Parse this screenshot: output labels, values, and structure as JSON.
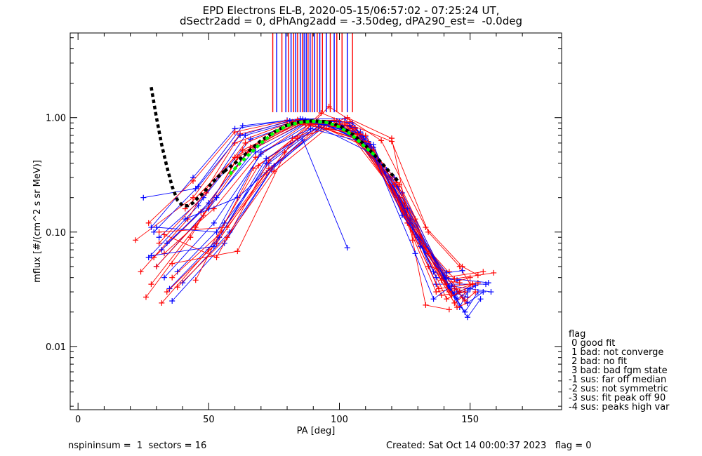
{
  "title_line1": "EPD Electrons EL-B, 2020-05-15/06:57:02 - 07:25:24 UT,",
  "title_line2": "dSectr2add = 0, dPhAng2add = -3.50deg, dPA290_est=  -0.0deg",
  "footer_left": "nspininsum =  1  sectors = 16",
  "footer_right": "Created: Sat Oct 14 00:00:37 2023   flag = 0",
  "legend": {
    "title": "flag",
    "items": [
      " 0 good fit",
      " 1 bad: not converge",
      " 2 bad: no fit",
      " 3 bad: bad fgm state",
      "-1 sus: far off median",
      "-2 sus: not symmetric",
      "-3 sus: fit peak off 90",
      "-4 sus: peaks high var"
    ]
  },
  "colors": {
    "red": "#ff0000",
    "blue": "#0000ff",
    "green": "#00ff00",
    "black": "#000000"
  },
  "chart_data": {
    "type": "line",
    "xlabel": "PA [deg]",
    "ylabel": "mflux [#/(cm^2 s sr MeV)]",
    "xlim": [
      -3,
      185
    ],
    "ylim": [
      0.0028,
      5.5
    ],
    "ylog": true,
    "xticks": [
      0,
      50,
      100,
      150
    ],
    "xtick_labels": [
      "0",
      "50",
      "100",
      "150"
    ],
    "yticks": [
      0.01,
      0.1,
      1.0
    ],
    "ytick_labels": [
      "0.01",
      "0.10",
      "1.00"
    ],
    "vertical_markers": [
      {
        "x": 74.5,
        "color": "red"
      },
      {
        "x": 76.0,
        "color": "blue"
      },
      {
        "x": 78.0,
        "color": "red"
      },
      {
        "x": 79.5,
        "color": "blue"
      },
      {
        "x": 80.5,
        "color": "red"
      },
      {
        "x": 81.5,
        "color": "blue"
      },
      {
        "x": 82.5,
        "color": "red"
      },
      {
        "x": 83.3,
        "color": "blue"
      },
      {
        "x": 84.0,
        "color": "red"
      },
      {
        "x": 85.0,
        "color": "blue"
      },
      {
        "x": 85.8,
        "color": "red"
      },
      {
        "x": 86.5,
        "color": "blue"
      },
      {
        "x": 87.3,
        "color": "blue"
      },
      {
        "x": 88.0,
        "color": "red"
      },
      {
        "x": 88.8,
        "color": "blue"
      },
      {
        "x": 89.6,
        "color": "red"
      },
      {
        "x": 90.5,
        "color": "blue"
      },
      {
        "x": 91.5,
        "color": "red"
      },
      {
        "x": 92.5,
        "color": "blue"
      },
      {
        "x": 93.5,
        "color": "red"
      },
      {
        "x": 95.0,
        "color": "blue"
      },
      {
        "x": 96.5,
        "color": "red"
      },
      {
        "x": 98.0,
        "color": "blue"
      },
      {
        "x": 99.0,
        "color": "red"
      },
      {
        "x": 101.0,
        "color": "red"
      },
      {
        "x": 103.0,
        "color": "blue"
      },
      {
        "x": 105.0,
        "color": "red"
      }
    ],
    "series": [
      {
        "color": "blue",
        "x": [
          25,
          45,
          63,
          85,
          102,
          121,
          137,
          156
        ],
        "y": [
          0.2,
          0.24,
          0.85,
          0.98,
          0.98,
          0.3,
          0.035,
          0.035
        ]
      },
      {
        "color": "red",
        "x": [
          22,
          44,
          62,
          84,
          104,
          123,
          140,
          155
        ],
        "y": [
          0.085,
          0.2,
          0.72,
          0.96,
          0.92,
          0.26,
          0.04,
          0.045
        ]
      },
      {
        "color": "blue",
        "x": [
          27,
          46,
          64,
          86,
          105,
          124,
          142,
          158
        ],
        "y": [
          0.06,
          0.17,
          0.7,
          0.97,
          0.9,
          0.22,
          0.034,
          0.03
        ]
      },
      {
        "color": "red",
        "x": [
          24,
          42,
          60,
          82,
          101,
          120,
          138,
          153
        ],
        "y": [
          0.045,
          0.13,
          0.6,
          0.92,
          0.88,
          0.24,
          0.032,
          0.036
        ]
      },
      {
        "color": "blue",
        "x": [
          31,
          48,
          66,
          87,
          106,
          125,
          143,
          149
        ],
        "y": [
          0.09,
          0.2,
          0.65,
          0.95,
          0.82,
          0.17,
          0.03,
          0.027
        ]
      },
      {
        "color": "red",
        "x": [
          28,
          45,
          63,
          84,
          104,
          122,
          139,
          148
        ],
        "y": [
          0.035,
          0.11,
          0.52,
          0.9,
          0.84,
          0.2,
          0.028,
          0.03
        ]
      },
      {
        "color": "blue",
        "x": [
          30,
          50,
          68,
          88,
          108,
          127,
          145,
          152
        ],
        "y": [
          0.05,
          0.16,
          0.55,
          0.93,
          0.75,
          0.13,
          0.026,
          0.034
        ]
      },
      {
        "color": "red",
        "x": [
          26,
          43,
          61,
          83,
          103,
          121,
          137,
          144
        ],
        "y": [
          0.027,
          0.09,
          0.45,
          0.88,
          0.86,
          0.22,
          0.03,
          0.032
        ]
      },
      {
        "color": "blue",
        "x": [
          33,
          52,
          70,
          90,
          109,
          128,
          146,
          149
        ],
        "y": [
          0.04,
          0.12,
          0.48,
          0.92,
          0.7,
          0.11,
          0.022,
          0.03
        ]
      },
      {
        "color": "red",
        "x": [
          32,
          50,
          69,
          89,
          108,
          126,
          144,
          147
        ],
        "y": [
          0.024,
          0.07,
          0.38,
          0.86,
          0.72,
          0.12,
          0.024,
          0.027
        ]
      },
      {
        "color": "blue",
        "x": [
          35,
          54,
          72,
          92,
          111,
          130,
          148,
          153
        ],
        "y": [
          0.032,
          0.09,
          0.4,
          0.9,
          0.62,
          0.09,
          0.02,
          0.03
        ]
      },
      {
        "color": "red",
        "x": [
          29,
          47,
          65,
          86,
          106,
          124,
          141,
          146
        ],
        "y": [
          0.06,
          0.15,
          0.5,
          0.9,
          0.8,
          0.18,
          0.026,
          0.03
        ]
      },
      {
        "color": "blue",
        "x": [
          36,
          56,
          74,
          94,
          112,
          131,
          149,
          154
        ],
        "y": [
          0.025,
          0.08,
          0.35,
          0.88,
          0.58,
          0.08,
          0.018,
          0.026
        ]
      },
      {
        "color": "red",
        "x": [
          34,
          53,
          72,
          92,
          110,
          128,
          145,
          149
        ],
        "y": [
          0.03,
          0.08,
          0.33,
          0.84,
          0.62,
          0.1,
          0.022,
          0.024
        ]
      },
      {
        "color": "blue",
        "x": [
          28,
          44,
          60,
          80,
          99,
          118,
          136,
          141
        ],
        "y": [
          0.11,
          0.3,
          0.8,
          0.95,
          0.94,
          0.35,
          0.045,
          0.04
        ]
      },
      {
        "color": "red",
        "x": [
          27,
          44,
          60,
          80,
          98,
          116,
          134,
          142
        ],
        "y": [
          0.12,
          0.28,
          0.75,
          0.94,
          0.95,
          0.38,
          0.05,
          0.045
        ]
      },
      {
        "color": "blue",
        "x": [
          38,
          56,
          73,
          93,
          110,
          127,
          145,
          152
        ],
        "y": [
          0.045,
          0.12,
          0.4,
          0.88,
          0.68,
          0.12,
          0.03,
          0.034
        ]
      },
      {
        "color": "red",
        "x": [
          36,
          55,
          73,
          93,
          111,
          129,
          146,
          151
        ],
        "y": [
          0.04,
          0.1,
          0.36,
          0.82,
          0.6,
          0.1,
          0.03,
          0.035
        ]
      },
      {
        "color": "blue",
        "x": [
          32,
          50,
          66,
          85,
          104,
          122,
          140,
          157
        ],
        "y": [
          0.07,
          0.18,
          0.55,
          0.9,
          0.85,
          0.25,
          0.04,
          0.036
        ]
      },
      {
        "color": "red",
        "x": [
          30,
          48,
          66,
          85,
          105,
          123,
          141,
          150
        ],
        "y": [
          0.05,
          0.14,
          0.55,
          0.9,
          0.8,
          0.2,
          0.035,
          0.04
        ]
      },
      {
        "color": "blue",
        "x": [
          34,
          53,
          68,
          88,
          107,
          126,
          144,
          150
        ],
        "y": [
          0.08,
          0.2,
          0.5,
          0.92,
          0.74,
          0.16,
          0.028,
          0.032
        ]
      },
      {
        "color": "red",
        "x": [
          33,
          52,
          68,
          87,
          107,
          125,
          143,
          148
        ],
        "y": [
          0.065,
          0.16,
          0.45,
          0.88,
          0.72,
          0.15,
          0.028,
          0.03
        ]
      },
      {
        "color": "blue",
        "x": [
          40,
          58,
          75,
          95,
          113,
          131,
          149,
          155
        ],
        "y": [
          0.036,
          0.1,
          0.38,
          0.86,
          0.55,
          0.075,
          0.024,
          0.03
        ]
      },
      {
        "color": "red",
        "x": [
          38,
          57,
          75,
          95,
          113,
          131,
          148,
          152
        ],
        "y": [
          0.033,
          0.09,
          0.34,
          0.8,
          0.52,
          0.08,
          0.025,
          0.03
        ]
      },
      {
        "color": "blue",
        "x": [
          29,
          46,
          62,
          81,
          100,
          119,
          137,
          145
        ],
        "y": [
          0.1,
          0.25,
          0.7,
          0.94,
          0.92,
          0.3,
          0.04,
          0.038
        ]
      },
      {
        "color": "red",
        "x": [
          31,
          49,
          64,
          83,
          102,
          121,
          139,
          146
        ],
        "y": [
          0.08,
          0.22,
          0.6,
          0.9,
          0.88,
          0.26,
          0.038,
          0.036
        ]
      },
      {
        "color": "red",
        "x": [
          31,
          57,
          79,
          96,
          116,
          133,
          147,
          153
        ],
        "y": [
          0.1,
          0.11,
          0.5,
          1.25,
          0.63,
          0.11,
          0.05,
          0.042
        ]
      },
      {
        "color": "red",
        "x": [
          33,
          53,
          73,
          93,
          120,
          134,
          146,
          150
        ],
        "y": [
          0.095,
          0.06,
          0.42,
          1.1,
          0.62,
          0.1,
          0.05,
          0.035
        ]
      },
      {
        "color": "blue",
        "x": [
          41,
          61,
          86,
          103
        ],
        "y": [
          0.13,
          0.2,
          0.64,
          0.073
        ]
      },
      {
        "color": "red",
        "x": [
          36,
          61,
          82,
          103,
          120,
          128,
          133,
          142
        ],
        "y": [
          0.053,
          0.068,
          0.66,
          1.0,
          0.66,
          0.085,
          0.023,
          0.021
        ]
      },
      {
        "color": "red",
        "x": [
          45,
          67,
          84,
          100,
          122,
          133,
          144,
          159
        ],
        "y": [
          0.038,
          0.36,
          0.66,
          0.88,
          0.27,
          0.075,
          0.039,
          0.044
        ]
      },
      {
        "color": "blue",
        "x": [
          28,
          52,
          72,
          92,
          113,
          129,
          136,
          143
        ],
        "y": [
          0.062,
          0.075,
          0.44,
          0.83,
          0.48,
          0.065,
          0.026,
          0.034
        ]
      },
      {
        "color": "red",
        "x": [
          41,
          60,
          82,
          110,
          129,
          134,
          142,
          151
        ],
        "y": [
          0.16,
          0.45,
          0.9,
          0.7,
          0.13,
          0.065,
          0.03,
          0.035
        ]
      },
      {
        "color": "blue",
        "x": [
          30,
          53,
          70,
          89,
          113,
          124,
          141,
          147
        ],
        "y": [
          0.11,
          0.1,
          0.5,
          0.8,
          0.58,
          0.14,
          0.044,
          0.046
        ]
      }
    ],
    "fit_curves": [
      {
        "name": "",
        "color": "black",
        "dash": true,
        "x": [
          28,
          30,
          32,
          34,
          36,
          38,
          40,
          42,
          44,
          46,
          48,
          50,
          52,
          54,
          56
        ],
        "y": [
          1.85,
          1.0,
          0.58,
          0.37,
          0.25,
          0.19,
          0.17,
          0.17,
          0.18,
          0.2,
          0.22,
          0.25,
          0.28,
          0.31,
          0.34
        ]
      },
      {
        "name": "",
        "color": "black",
        "dash": true,
        "x": [
          56,
          60,
          65,
          70,
          75,
          80,
          85,
          90,
          95,
          100,
          105,
          110,
          115,
          120,
          123
        ],
        "y": [
          0.34,
          0.4,
          0.5,
          0.63,
          0.75,
          0.86,
          0.92,
          0.94,
          0.92,
          0.85,
          0.72,
          0.57,
          0.43,
          0.32,
          0.27
        ]
      },
      {
        "name": "",
        "color": "green",
        "dash": true,
        "x": [
          58,
          62,
          66,
          70,
          75,
          80,
          85,
          90,
          95,
          100,
          105,
          110,
          114
        ],
        "y": [
          0.32,
          0.4,
          0.49,
          0.6,
          0.74,
          0.85,
          0.91,
          0.93,
          0.91,
          0.83,
          0.7,
          0.55,
          0.46
        ]
      }
    ]
  }
}
